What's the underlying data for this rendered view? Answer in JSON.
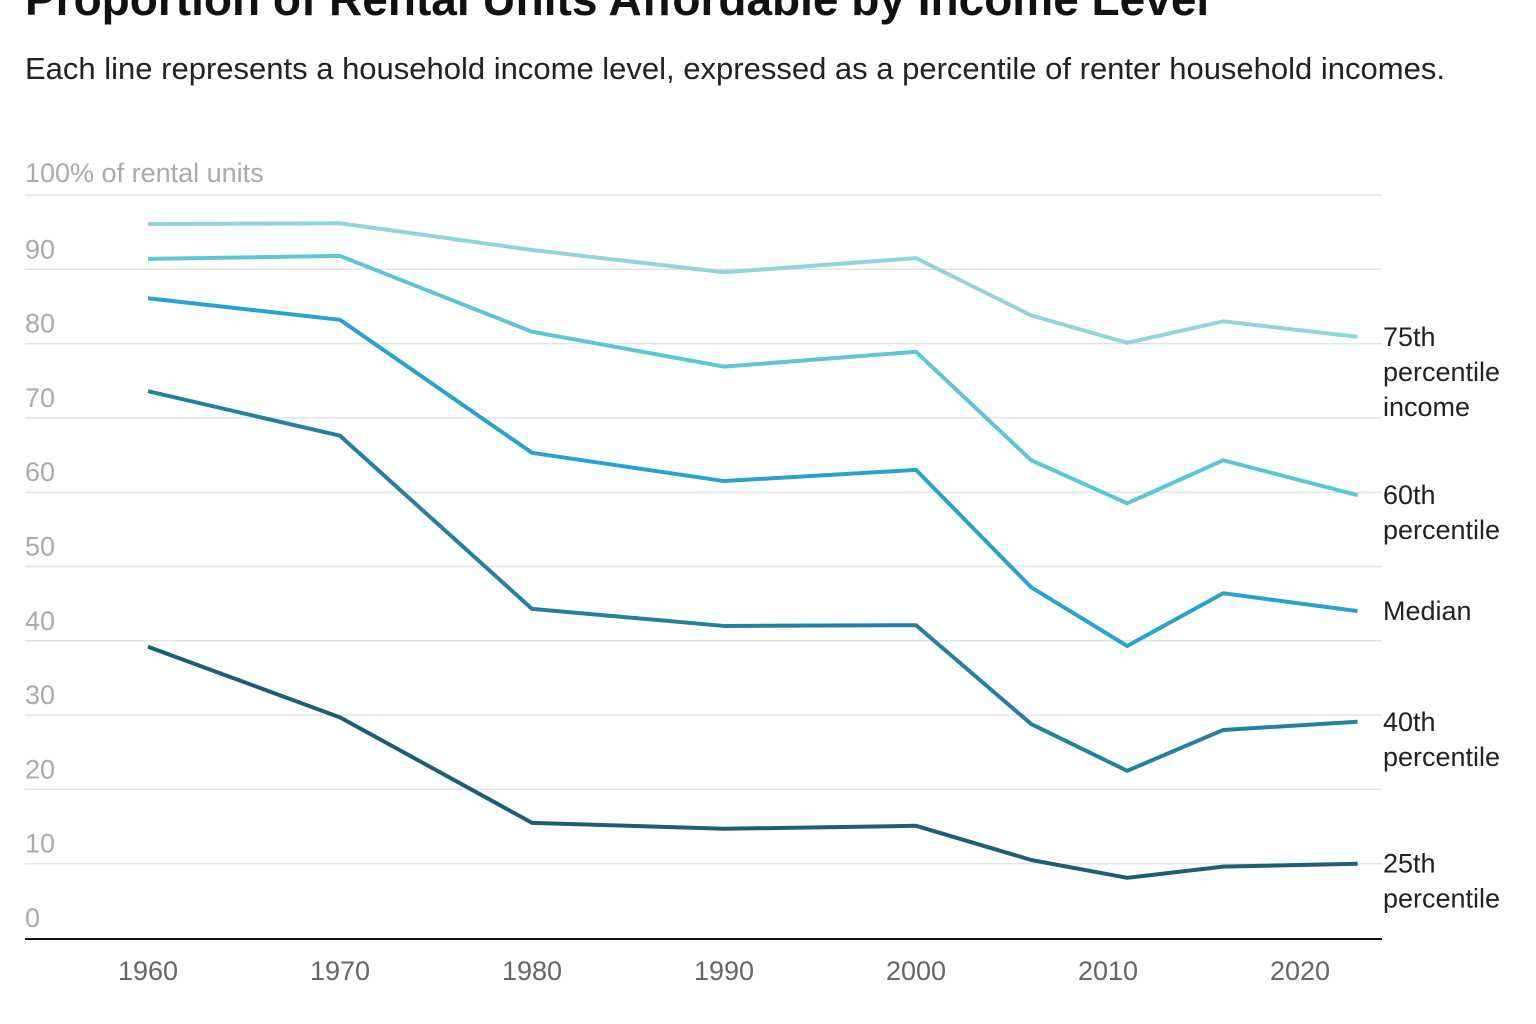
{
  "chart_data": {
    "type": "line",
    "title": "Proportion of Rental Units Affordable by Income Level",
    "subtitle": "Each line represents a household income level, expressed as a percentile of renter household incomes.",
    "ylabel": "100% of rental units",
    "ylim": [
      0,
      100
    ],
    "yticks": [
      "0",
      "10",
      "20",
      "30",
      "40",
      "50",
      "60",
      "70",
      "80",
      "90"
    ],
    "xlim": [
      1953.5,
      2024.5
    ],
    "xticks": [
      "1960",
      "1970",
      "1980",
      "1990",
      "2000",
      "2010",
      "2020"
    ],
    "grid": true,
    "legend": "direct labels at right",
    "x": [
      1960,
      1970,
      1980,
      1990,
      2000,
      2006,
      2011,
      2016,
      2023
    ],
    "series": [
      {
        "name": "75th percentile income",
        "color": "#8fd6dc",
        "values": [
          96.1,
          96.2,
          92.6,
          89.6,
          91.5,
          83.8,
          80.1,
          83.0,
          80.9
        ]
      },
      {
        "name": "60th percentile",
        "color": "#5cc6d8",
        "values": [
          91.4,
          91.8,
          81.6,
          76.9,
          78.9,
          64.3,
          58.5,
          64.3,
          59.6
        ]
      },
      {
        "name": "Median",
        "color": "#27a3cc",
        "values": [
          86.1,
          83.2,
          65.3,
          61.5,
          63.0,
          47.2,
          39.3,
          46.4,
          44.0
        ]
      },
      {
        "name": "40th percentile",
        "color": "#23809e",
        "values": [
          73.6,
          67.6,
          44.3,
          42.0,
          42.1,
          28.8,
          22.5,
          28.0,
          29.1
        ]
      },
      {
        "name": "25th percentile",
        "color": "#1b5e78",
        "values": [
          39.2,
          29.7,
          15.5,
          14.7,
          15.1,
          10.5,
          8.1,
          9.6,
          10.0
        ]
      }
    ]
  }
}
